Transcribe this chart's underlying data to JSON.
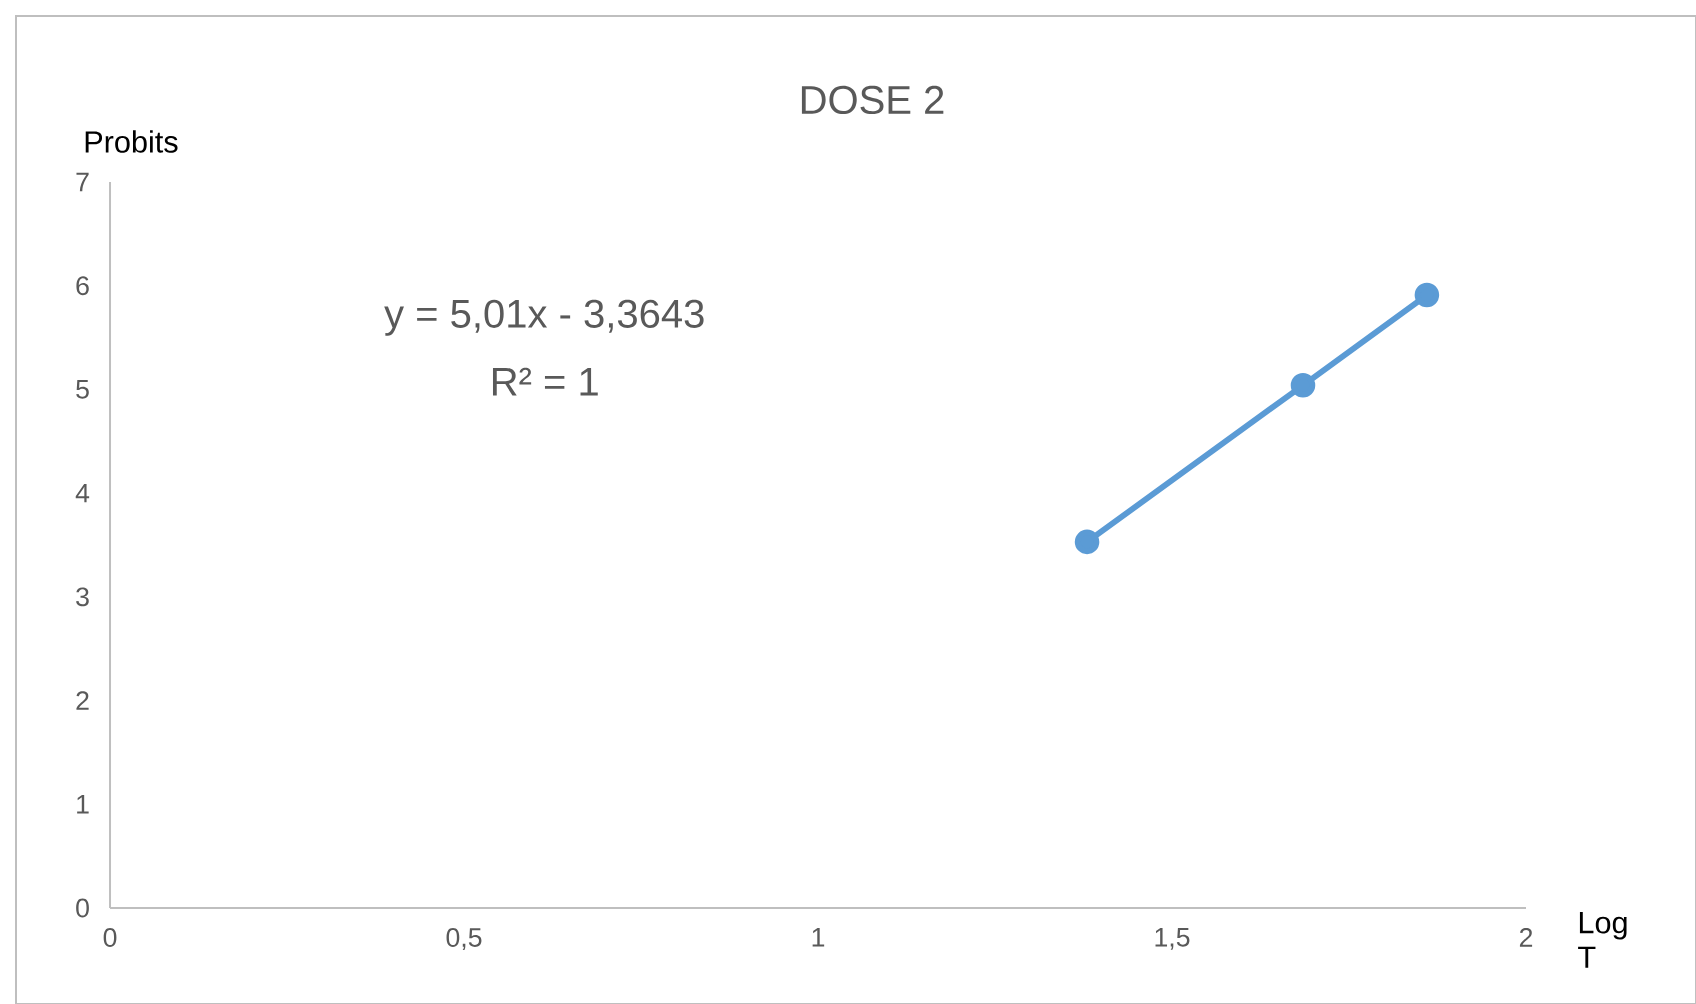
{
  "chart_data": {
    "type": "line",
    "title": "DOSE 2",
    "xlabel": "Log T",
    "ylabel": "Probits",
    "annotations": [
      "y = 5,01x - 3,3643",
      "R² = 1"
    ],
    "x": [
      1.38,
      1.685,
      1.86
    ],
    "series": [
      {
        "color": "#5b9bd5",
        "values": [
          3.53,
          5.04,
          5.91
        ]
      }
    ],
    "xlim": [
      0,
      2
    ],
    "ylim": [
      0,
      7
    ],
    "xticks": [
      0,
      {
        "value": 0.5,
        "label": "0,5"
      },
      1,
      {
        "value": 1.5,
        "label": "1,5"
      },
      2
    ],
    "yticks": [
      0,
      1,
      2,
      3,
      4,
      5,
      6,
      7
    ],
    "marker": "circle",
    "line_style": "solid"
  }
}
